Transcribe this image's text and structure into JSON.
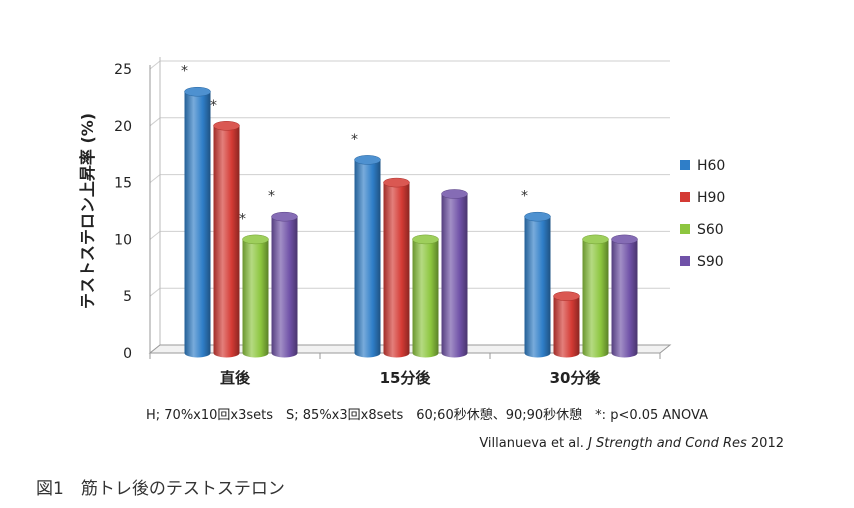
{
  "chart_data": {
    "type": "bar",
    "ylabel": "テストステロン上昇率 (%)",
    "xlabel": "",
    "ylim": [
      0,
      25
    ],
    "yticks": [
      0,
      5,
      10,
      15,
      20,
      25
    ],
    "categories": [
      "直後",
      "15分後",
      "30分後"
    ],
    "series": [
      {
        "name": "H60",
        "color": "#2f7ec8",
        "values": [
          23,
          17,
          12
        ]
      },
      {
        "name": "H90",
        "color": "#d43a34",
        "values": [
          20,
          15,
          5
        ]
      },
      {
        "name": "S60",
        "color": "#8dc63f",
        "values": [
          10,
          10,
          10
        ]
      },
      {
        "name": "S90",
        "color": "#7052a8",
        "values": [
          12,
          14,
          10
        ]
      }
    ],
    "significance_marks": [
      {
        "category": 0,
        "series": 0,
        "label": "*"
      },
      {
        "category": 0,
        "series": 1,
        "label": "*"
      },
      {
        "category": 0,
        "series": 2,
        "label": "*"
      },
      {
        "category": 0,
        "series": 3,
        "label": "*"
      },
      {
        "category": 1,
        "series": 0,
        "label": "*"
      },
      {
        "category": 2,
        "series": 0,
        "label": "*"
      }
    ],
    "legend_position": "right",
    "grid": true
  },
  "notes": {
    "conditions": "H; 70%x10回x3sets　S; 85%x3回x8sets　60;60秒休憩、90;90秒休憩　*: p<0.05 ANOVA",
    "authors": "Villanueva et al.",
    "journal": "J Strength and Cond Res",
    "year": "2012"
  },
  "caption": "図1　筋トレ後のテストステロン"
}
